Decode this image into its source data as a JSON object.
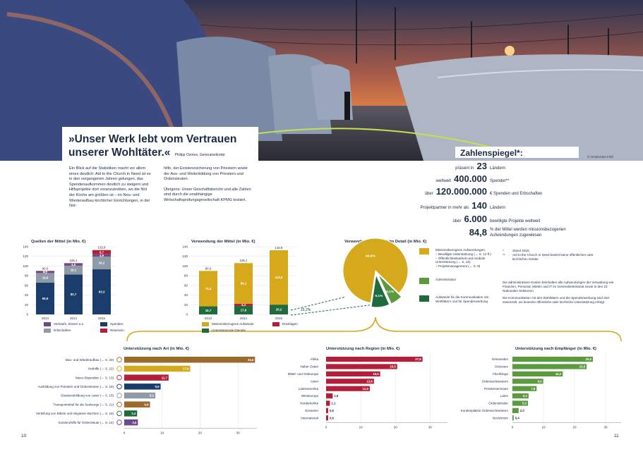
{
  "colors": {
    "navy": "#1b3d6b",
    "gray": "#8e9aa6",
    "purple": "#6e4a8d",
    "red": "#b21f38",
    "gold": "#d6a81c",
    "green": "#1f6b3d",
    "brown": "#9b6a2c",
    "lightgreen": "#5b9a3f",
    "title": "#1b2b44"
  },
  "quote": {
    "text": "»Unser Werk lebt vom Vertrauen unserer Wohltäter.«",
    "author": "Philipp Ozores, Generalsekretär"
  },
  "photo_credit": "© ACN/Anton Fritč",
  "intro": {
    "col1": "Ein Blick auf die Statistiken macht vor allem eines deutlich: Aid to the Church in Need ist es in den vergangenen Jahren gelungen, das Spendenaufkommen deutlich zu steigern und Hilfsprojekte dort voranzutreiben, wo die Not der Kirche am größten ist – im Neu- und Wiederaufbau kirchlicher Einrichtungen, in der Not-",
    "col2a": "hilfe, der Existenzsicherung von Priestern sowie der Aus- und Weiterbildung von Priestern und Ordensleuten.",
    "col2b": "Übrigens: Unser Geschäftsbericht und alle Zahlen sind durch die unabhängige Wirtschaftsprüfungsgesellschaft KPMG testiert."
  },
  "zahlenspiegel": {
    "title": "Zahlenspiegel*:",
    "rows": [
      {
        "pre": "präsent in",
        "num": "23",
        "post": "Ländern"
      },
      {
        "pre": "weltweit",
        "num": "400.000",
        "post": "Spender**"
      },
      {
        "pre": "über",
        "num": "120.000.000",
        "post": "€ Spenden und Erbschaften"
      },
      {
        "pre": "Projektpartner in mehr als",
        "num": "140",
        "post": "Ländern"
      },
      {
        "pre": "über",
        "num": "6.000",
        "post": "bewilligte Projekte weltweit"
      },
      {
        "pre": "",
        "num": "84,8",
        "post": "% der Mittel werden missionsbezogenen Aufwendungen zugewiesen"
      }
    ]
  },
  "footnotes": [
    {
      "mark": "*",
      "text": "Stand 2015."
    },
    {
      "mark": "**",
      "text": "Aid to the Church in Need besitzt keine öffentlichen oder kirchlichen Gelder."
    }
  ],
  "side_notes": [
    "Die administrativen Kosten beinhalten alle Aufwendungen der Verwaltung wie Finanzen, Personal, Mieten und IT im Generalsekretariat sowie in den 23 Nationalen Sektionen.",
    "Die Kommunikation mit den Wohltätern und die Spenderwerbung sind dort essenziell, wo keinerlei öffentliche oder kirchliche Unterstützung erfolgt."
  ],
  "page_numbers": {
    "left": "10",
    "right": "11"
  },
  "chart_data": [
    {
      "type": "bar",
      "stacked": true,
      "title": "Quellen der Mittel (in Mio. €)",
      "categories": [
        "2013",
        "2014",
        "2015"
      ],
      "ylim": [
        0,
        140
      ],
      "yticks": [
        "0",
        "20",
        "40",
        "60",
        "80",
        "100",
        "120",
        "140"
      ],
      "series": [
        {
          "name": "Spenden",
          "color": "#1b3d6b",
          "values": [
            65.9,
            82.7,
            93.3
          ],
          "labels": [
            "65,9",
            "82,7",
            "93,3"
          ]
        },
        {
          "name": "Erbschaften",
          "color": "#8e9aa6",
          "values": [
            19.6,
            18.1,
            26.2
          ],
          "labels": [
            "19,6",
            "18,1",
            "26,2"
          ]
        },
        {
          "name": "Verkäufe, Zinsen u.s.",
          "color": "#6e4a8d",
          "values": [
            4.1,
            4.5,
            4.9
          ],
          "labels": [
            "4,1",
            "4,5",
            "4,9"
          ]
        },
        {
          "name": "Reserven",
          "color": "#b21f38",
          "values": [
            0.4,
            0.8,
            8.7
          ],
          "labels": [
            "0,4",
            "",
            "8,7"
          ]
        }
      ],
      "totals": [
        "90,0",
        "106,1",
        "132,8"
      ]
    },
    {
      "type": "bar",
      "stacked": true,
      "title": "Verwendung der Mittel (in Mio. €)",
      "categories": [
        "2013",
        "2014",
        "2015"
      ],
      "ylim": [
        0,
        140
      ],
      "yticks": [
        "0",
        "20",
        "40",
        "60",
        "80",
        "100",
        "120",
        "140"
      ],
      "series": [
        {
          "name": "Unterstützende Dienste",
          "color": "#1f6b3d",
          "values": [
            16.7,
            17.6,
            20.2
          ],
          "labels": [
            "16,7",
            "17,6",
            "20,2"
          ]
        },
        {
          "name": "Rücklagen",
          "color": "#b21f38",
          "values": [
            0,
            4.4,
            0
          ],
          "labels": [
            "",
            "4,4",
            ""
          ]
        },
        {
          "name": "Missionsbezogene Aufwände",
          "color": "#d6a81c",
          "values": [
            73.3,
            84.1,
            112.6
          ],
          "labels": [
            "73,3",
            "84,1",
            "112,6"
          ]
        }
      ],
      "totals": [
        "90,0",
        "106,1",
        "132,8"
      ],
      "annotation": "15,2%"
    },
    {
      "type": "pie",
      "title": "Verwendung der Mittel im Detail (in Mio. €)",
      "slices": [
        {
          "label": "Missionsbezogene Aufwendungen",
          "value": 84.8,
          "text": "84,8%",
          "color": "#d6a81c"
        },
        {
          "label": "Administration",
          "value": 6.1,
          "text": "6,1%",
          "color": "#5b9a3f"
        },
        {
          "label": "Aufwände für die Kommunikation mit Wohltätern und für Spenderwerbung",
          "value": 9.1,
          "text": "9,1%",
          "color": "#1f6b3d"
        }
      ],
      "legend": [
        {
          "color": "#d6a81c",
          "lines": [
            "Missionsbezogene Aufwendungen:",
            "– Bewilligte Unterstützung (→ S. 12 ff.)",
            "– Öffentlichkeitsarbeit und mediale",
            "   Unterstützung (→ S. 16)",
            "– Projektmanagement (→ S. 9)"
          ]
        },
        {
          "color": "#5b9a3f",
          "lines": [
            "Administration"
          ]
        },
        {
          "color": "#1f6b3d",
          "lines": [
            "Aufwände für die Kommunikation mit",
            "Wohltätern und für Spenderwerbung"
          ]
        }
      ]
    },
    {
      "type": "bar",
      "horizontal": true,
      "title": "Unterstützung nach Art (in Mio. €)",
      "xlim": [
        0,
        35
      ],
      "xticks": [
        "0",
        "10",
        "20",
        "30"
      ],
      "rows": [
        {
          "label": "Bau- und Wiederaufbau (→ S. 20)",
          "value": 34.5,
          "text": "34,5",
          "color": "#9b6a2c"
        },
        {
          "label": "Nothilfe (→ S. 22)",
          "value": 17.4,
          "text": "17,4",
          "color": "#d6a81c"
        },
        {
          "label": "Mess-Stipendien (→ S. 13)",
          "value": 11.7,
          "text": "11,7",
          "color": "#b21f38"
        },
        {
          "label": "Ausbildung von Priestern und Ordensleuten (→ S. 18)",
          "value": 9.6,
          "text": "9,6",
          "color": "#1b3d6b"
        },
        {
          "label": "Glaubensbildung von Laien (→ S. 15)",
          "value": 8.2,
          "text": "8,2",
          "color": "#8e9aa6"
        },
        {
          "label": "Transportmittel für die Seelsorge (→ S. 21)",
          "value": 6.8,
          "text": "6,8",
          "color": "#9b6a2c"
        },
        {
          "label": "Verteilung von Bibeln und religiösen Büchern (→ S. 16)",
          "value": 3.4,
          "text": "3,4",
          "color": "#1f6b3d"
        },
        {
          "label": "Existenzhilfe für Ordensleute (→ S. 14)",
          "value": 3.6,
          "text": "3,6",
          "color": "#6e4a8d"
        }
      ],
      "icons": [
        "house-icon",
        "flame-icon",
        "chalice-icon",
        "book-icon",
        "person-icon",
        "car-icon",
        "bible-icon",
        "nun-icon"
      ]
    },
    {
      "type": "bar",
      "horizontal": true,
      "title": "Unterstützung nach Region (in Mio. €)",
      "xlim": [
        0,
        35
      ],
      "xticks": [
        "0",
        "10",
        "20",
        "30"
      ],
      "rows": [
        {
          "label": "Afrika",
          "value": 27.8,
          "text": "27,8",
          "color": "#b21f38"
        },
        {
          "label": "Naher Osten",
          "value": 20.5,
          "text": "20,5",
          "color": "#b21f38"
        },
        {
          "label": "Mittel- und Osteuropa",
          "value": 15.6,
          "text": "15,6",
          "color": "#b21f38"
        },
        {
          "label": "Asien",
          "value": 13.8,
          "text": "13,8",
          "color": "#b21f38"
        },
        {
          "label": "Lateinamerika",
          "value": 12.6,
          "text": "12,6",
          "color": "#b21f38"
        },
        {
          "label": "Westeuropa",
          "value": 1.9,
          "text": "1,9",
          "color": "#b21f38"
        },
        {
          "label": "Nordamerika",
          "value": 1.1,
          "text": "1,1",
          "color": "#b21f38"
        },
        {
          "label": "Ozeanien",
          "value": 0.6,
          "text": "0,6",
          "color": "#b21f38"
        },
        {
          "label": "International",
          "value": 0.6,
          "text": "0,6",
          "color": "#b21f38"
        }
      ]
    },
    {
      "type": "bar",
      "horizontal": true,
      "title": "Unterstützung nach Empfänger (in Mio. €)",
      "xlim": [
        0,
        35
      ],
      "xticks": [
        "0",
        "10",
        "20",
        "30"
      ],
      "rows": [
        {
          "label": "Gemeinden",
          "value": 25.9,
          "text": "25,9",
          "color": "#5b9a3f"
        },
        {
          "label": "Diözesen",
          "value": 23.9,
          "text": "23,9",
          "color": "#5b9a3f"
        },
        {
          "label": "Flüchtlinge",
          "value": 16.2,
          "text": "16,2",
          "color": "#5b9a3f"
        },
        {
          "label": "Ordensschwestern",
          "value": 9.9,
          "text": "9,9",
          "color": "#5b9a3f"
        },
        {
          "label": "Priesterseminare",
          "value": 7.8,
          "text": "7,8",
          "color": "#5b9a3f"
        },
        {
          "label": "Laien",
          "value": 5.2,
          "text": "5,2",
          "color": "#5b9a3f"
        },
        {
          "label": "Ordensbrüder",
          "value": 5.0,
          "text": "5,0",
          "color": "#5b9a3f"
        },
        {
          "label": "Kontemplative Ordensschwestern",
          "value": 2.0,
          "text": "2,0",
          "color": "#5b9a3f"
        },
        {
          "label": "Novizinnen",
          "value": 0.4,
          "text": "0,4",
          "color": "#5b9a3f"
        }
      ]
    }
  ]
}
